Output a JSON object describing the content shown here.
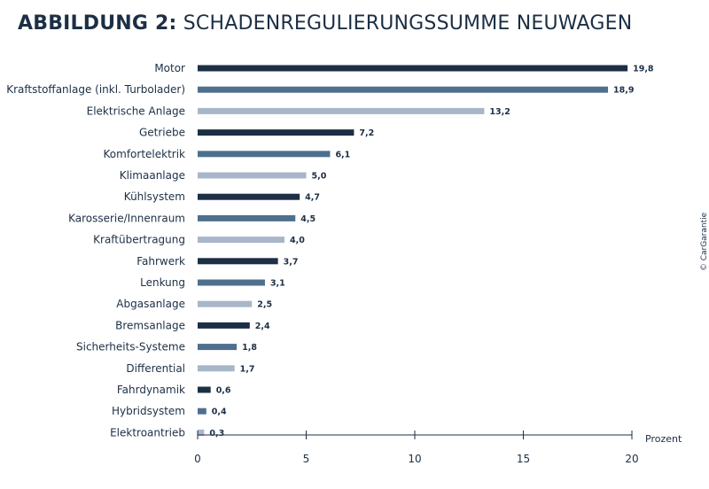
{
  "title_prefix": "ABBILDUNG 2:",
  "title": "SCHADENREGULIERUNGSSUMME NEUWAGEN",
  "credit": "© CarGarantie",
  "chart_data": {
    "type": "bar",
    "orientation": "horizontal",
    "categories": [
      "Motor",
      "Kraftstoffanlage (inkl. Turbolader)",
      "Elektrische Anlage",
      "Getriebe",
      "Komfortelektrik",
      "Klimaanlage",
      "Kühlsystem",
      "Karosserie/Innenraum",
      "Kraftübertragung",
      "Fahrwerk",
      "Lenkung",
      "Abgasanlage",
      "Bremsanlage",
      "Sicherheits-Systeme",
      "Differential",
      "Fahrdynamik",
      "Hybridsystem",
      "Elektroantrieb"
    ],
    "values": [
      19.8,
      18.9,
      13.2,
      7.2,
      6.1,
      5.0,
      4.7,
      4.5,
      4.0,
      3.7,
      3.1,
      2.5,
      2.4,
      1.8,
      1.7,
      0.6,
      0.4,
      0.3
    ],
    "value_labels": [
      "19,8",
      "18,9",
      "13,2",
      "7,2",
      "6,1",
      "5,0",
      "4,7",
      "4,5",
      "4,0",
      "3,7",
      "3,1",
      "2,5",
      "2,4",
      "1,8",
      "1,7",
      "0,6",
      "0,4",
      "0,3"
    ],
    "xlabel": "Prozent",
    "xlim": [
      0,
      20
    ],
    "xticks": [
      0,
      5,
      10,
      15,
      20
    ],
    "grid": false,
    "colors": [
      "#1c2f45",
      "#4f6f8f",
      "#a7b7c9"
    ]
  }
}
